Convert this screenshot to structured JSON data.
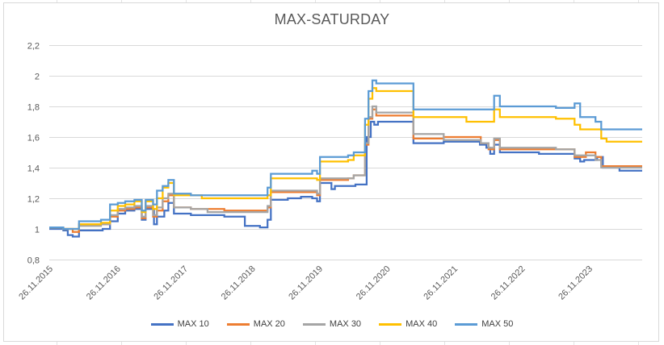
{
  "chart_data": {
    "type": "line",
    "title": "MAX-SATURDAY",
    "xlabel": "",
    "ylabel": "",
    "x_ticks": [
      "26.11.2015",
      "26.11.2016",
      "26.11.2017",
      "26.11.2018",
      "26.11.2019",
      "26.11.2020",
      "26.11.2021",
      "26.11.2022",
      "26.11.2023"
    ],
    "x_range": [
      "2015-11-26",
      "2024-09-10"
    ],
    "y_ticks": [
      "0,8",
      "1",
      "1,2",
      "1,4",
      "1,6",
      "1,8",
      "2",
      "2,2"
    ],
    "ylim": [
      0.8,
      2.2
    ],
    "grid": "horizontal",
    "legend_position": "bottom",
    "series": [
      {
        "name": "MAX 10",
        "color": "#4472c4",
        "points": [
          [
            "2015-11-26",
            1.0
          ],
          [
            "2016-02-10",
            0.99
          ],
          [
            "2016-03-05",
            0.96
          ],
          [
            "2016-04-01",
            0.95
          ],
          [
            "2016-05-05",
            0.99
          ],
          [
            "2016-07-01",
            0.99
          ],
          [
            "2016-09-10",
            1.0
          ],
          [
            "2016-10-20",
            1.05
          ],
          [
            "2016-12-01",
            1.1
          ],
          [
            "2017-01-10",
            1.12
          ],
          [
            "2017-03-01",
            1.13
          ],
          [
            "2017-04-10",
            1.06
          ],
          [
            "2017-05-01",
            1.13
          ],
          [
            "2017-06-15",
            1.03
          ],
          [
            "2017-07-01",
            1.08
          ],
          [
            "2017-08-10",
            1.12
          ],
          [
            "2017-09-01",
            1.17
          ],
          [
            "2017-10-01",
            1.1
          ],
          [
            "2018-01-01",
            1.09
          ],
          [
            "2018-07-01",
            1.08
          ],
          [
            "2018-10-20",
            1.02
          ],
          [
            "2019-01-10",
            1.01
          ],
          [
            "2019-02-20",
            1.06
          ],
          [
            "2019-03-10",
            1.19
          ],
          [
            "2019-06-10",
            1.2
          ],
          [
            "2019-08-20",
            1.21
          ],
          [
            "2019-10-20",
            1.2
          ],
          [
            "2019-11-15",
            1.18
          ],
          [
            "2019-12-01",
            1.3
          ],
          [
            "2020-02-01",
            1.26
          ],
          [
            "2020-02-20",
            1.28
          ],
          [
            "2020-04-01",
            1.28
          ],
          [
            "2020-06-10",
            1.29
          ],
          [
            "2020-08-10",
            1.6
          ],
          [
            "2020-09-01",
            1.7
          ],
          [
            "2020-09-20",
            1.68
          ],
          [
            "2020-10-10",
            1.7
          ],
          [
            "2020-12-01",
            1.7
          ],
          [
            "2021-03-01",
            1.7
          ],
          [
            "2021-04-20",
            1.56
          ],
          [
            "2021-08-01",
            1.56
          ],
          [
            "2021-10-01",
            1.57
          ],
          [
            "2022-02-01",
            1.57
          ],
          [
            "2022-04-15",
            1.55
          ],
          [
            "2022-05-20",
            1.53
          ],
          [
            "2022-06-10",
            1.49
          ],
          [
            "2022-07-01",
            1.55
          ],
          [
            "2022-08-01",
            1.5
          ],
          [
            "2022-12-01",
            1.5
          ],
          [
            "2023-03-01",
            1.49
          ],
          [
            "2023-06-01",
            1.49
          ],
          [
            "2023-09-10",
            1.46
          ],
          [
            "2023-10-10",
            1.44
          ],
          [
            "2023-11-01",
            1.45
          ],
          [
            "2024-01-10",
            1.47
          ],
          [
            "2024-02-10",
            1.4
          ],
          [
            "2024-05-10",
            1.38
          ],
          [
            "2024-09-10",
            1.38
          ]
        ]
      },
      {
        "name": "MAX 20",
        "color": "#ed7d31",
        "points": [
          [
            "2015-11-26",
            1.01
          ],
          [
            "2016-02-10",
            1.0
          ],
          [
            "2016-04-01",
            0.98
          ],
          [
            "2016-05-05",
            1.03
          ],
          [
            "2016-09-01",
            1.03
          ],
          [
            "2016-10-20",
            1.08
          ],
          [
            "2016-12-01",
            1.12
          ],
          [
            "2017-01-10",
            1.13
          ],
          [
            "2017-03-01",
            1.14
          ],
          [
            "2017-04-10",
            1.07
          ],
          [
            "2017-05-01",
            1.14
          ],
          [
            "2017-06-10",
            1.08
          ],
          [
            "2017-07-01",
            1.12
          ],
          [
            "2017-08-01",
            1.18
          ],
          [
            "2017-09-01",
            1.22
          ],
          [
            "2017-10-01",
            1.14
          ],
          [
            "2018-01-01",
            1.13
          ],
          [
            "2018-07-01",
            1.12
          ],
          [
            "2019-02-20",
            1.14
          ],
          [
            "2019-03-10",
            1.24
          ],
          [
            "2019-10-01",
            1.24
          ],
          [
            "2019-11-15",
            1.22
          ],
          [
            "2019-12-01",
            1.32
          ],
          [
            "2020-05-01",
            1.33
          ],
          [
            "2020-06-01",
            1.35
          ],
          [
            "2020-08-01",
            1.55
          ],
          [
            "2020-08-20",
            1.72
          ],
          [
            "2020-09-10",
            1.78
          ],
          [
            "2020-10-01",
            1.74
          ],
          [
            "2021-03-01",
            1.74
          ],
          [
            "2021-04-20",
            1.59
          ],
          [
            "2021-08-01",
            1.59
          ],
          [
            "2021-10-01",
            1.6
          ],
          [
            "2022-03-01",
            1.6
          ],
          [
            "2022-04-20",
            1.56
          ],
          [
            "2022-06-01",
            1.52
          ],
          [
            "2022-07-01",
            1.58
          ],
          [
            "2022-08-01",
            1.52
          ],
          [
            "2023-06-01",
            1.52
          ],
          [
            "2023-09-10",
            1.47
          ],
          [
            "2023-11-10",
            1.5
          ],
          [
            "2024-01-01",
            1.47
          ],
          [
            "2024-02-01",
            1.41
          ],
          [
            "2024-09-10",
            1.41
          ]
        ]
      },
      {
        "name": "MAX 30",
        "color": "#a5a5a5",
        "points": [
          [
            "2015-11-26",
            1.01
          ],
          [
            "2016-02-10",
            1.0
          ],
          [
            "2016-05-05",
            1.02
          ],
          [
            "2016-09-01",
            1.03
          ],
          [
            "2016-10-20",
            1.09
          ],
          [
            "2016-12-01",
            1.13
          ],
          [
            "2017-01-10",
            1.14
          ],
          [
            "2017-03-01",
            1.15
          ],
          [
            "2017-04-10",
            1.08
          ],
          [
            "2017-05-01",
            1.15
          ],
          [
            "2017-06-10",
            1.09
          ],
          [
            "2017-07-01",
            1.14
          ],
          [
            "2017-08-01",
            1.2
          ],
          [
            "2017-09-01",
            1.23
          ],
          [
            "2017-10-01",
            1.14
          ],
          [
            "2018-01-01",
            1.13
          ],
          [
            "2018-04-01",
            1.11
          ],
          [
            "2018-07-01",
            1.11
          ],
          [
            "2019-02-20",
            1.15
          ],
          [
            "2019-03-10",
            1.25
          ],
          [
            "2019-10-01",
            1.25
          ],
          [
            "2019-11-15",
            1.23
          ],
          [
            "2019-12-01",
            1.33
          ],
          [
            "2020-05-01",
            1.33
          ],
          [
            "2020-06-01",
            1.35
          ],
          [
            "2020-08-01",
            1.56
          ],
          [
            "2020-08-20",
            1.73
          ],
          [
            "2020-09-10",
            1.8
          ],
          [
            "2020-10-01",
            1.76
          ],
          [
            "2021-03-01",
            1.76
          ],
          [
            "2021-04-20",
            1.62
          ],
          [
            "2021-08-01",
            1.62
          ],
          [
            "2021-10-01",
            1.58
          ],
          [
            "2022-03-01",
            1.58
          ],
          [
            "2022-04-20",
            1.56
          ],
          [
            "2022-06-01",
            1.53
          ],
          [
            "2022-07-01",
            1.59
          ],
          [
            "2022-08-01",
            1.53
          ],
          [
            "2023-06-01",
            1.52
          ],
          [
            "2023-09-10",
            1.48
          ],
          [
            "2023-11-10",
            1.48
          ],
          [
            "2024-01-01",
            1.45
          ],
          [
            "2024-02-01",
            1.4
          ],
          [
            "2024-09-10",
            1.4
          ]
        ]
      },
      {
        "name": "MAX 40",
        "color": "#ffc000",
        "points": [
          [
            "2015-11-26",
            1.01
          ],
          [
            "2016-02-10",
            1.0
          ],
          [
            "2016-05-05",
            1.03
          ],
          [
            "2016-09-01",
            1.04
          ],
          [
            "2016-10-20",
            1.12
          ],
          [
            "2016-12-01",
            1.15
          ],
          [
            "2017-01-10",
            1.16
          ],
          [
            "2017-03-01",
            1.18
          ],
          [
            "2017-04-10",
            1.11
          ],
          [
            "2017-05-01",
            1.18
          ],
          [
            "2017-06-10",
            1.13
          ],
          [
            "2017-07-01",
            1.2
          ],
          [
            "2017-08-01",
            1.27
          ],
          [
            "2017-09-01",
            1.3
          ],
          [
            "2017-10-01",
            1.22
          ],
          [
            "2018-01-01",
            1.22
          ],
          [
            "2018-03-01",
            1.2
          ],
          [
            "2018-07-01",
            1.2
          ],
          [
            "2019-02-20",
            1.22
          ],
          [
            "2019-03-10",
            1.33
          ],
          [
            "2019-10-01",
            1.33
          ],
          [
            "2019-11-15",
            1.32
          ],
          [
            "2019-12-01",
            1.44
          ],
          [
            "2020-05-01",
            1.45
          ],
          [
            "2020-06-01",
            1.48
          ],
          [
            "2020-08-01",
            1.68
          ],
          [
            "2020-08-20",
            1.85
          ],
          [
            "2020-09-10",
            1.92
          ],
          [
            "2020-10-01",
            1.9
          ],
          [
            "2021-03-01",
            1.9
          ],
          [
            "2021-04-20",
            1.73
          ],
          [
            "2021-08-01",
            1.73
          ],
          [
            "2021-10-01",
            1.73
          ],
          [
            "2022-02-01",
            1.7
          ],
          [
            "2022-04-01",
            1.7
          ],
          [
            "2022-06-01",
            1.7
          ],
          [
            "2022-07-01",
            1.78
          ],
          [
            "2022-08-01",
            1.73
          ],
          [
            "2023-06-01",
            1.72
          ],
          [
            "2023-09-10",
            1.68
          ],
          [
            "2023-10-10",
            1.65
          ],
          [
            "2024-02-01",
            1.59
          ],
          [
            "2024-03-01",
            1.57
          ],
          [
            "2024-09-10",
            1.57
          ]
        ]
      },
      {
        "name": "MAX 50",
        "color": "#5b9bd5",
        "points": [
          [
            "2015-11-26",
            1.01
          ],
          [
            "2016-02-10",
            1.0
          ],
          [
            "2016-05-05",
            1.05
          ],
          [
            "2016-09-01",
            1.06
          ],
          [
            "2016-10-20",
            1.16
          ],
          [
            "2016-12-01",
            1.17
          ],
          [
            "2017-01-10",
            1.18
          ],
          [
            "2017-03-01",
            1.19
          ],
          [
            "2017-04-10",
            1.12
          ],
          [
            "2017-05-01",
            1.19
          ],
          [
            "2017-06-10",
            1.16
          ],
          [
            "2017-07-01",
            1.25
          ],
          [
            "2017-08-01",
            1.28
          ],
          [
            "2017-09-01",
            1.32
          ],
          [
            "2017-10-01",
            1.23
          ],
          [
            "2018-01-01",
            1.22
          ],
          [
            "2018-07-01",
            1.22
          ],
          [
            "2019-02-20",
            1.27
          ],
          [
            "2019-03-10",
            1.36
          ],
          [
            "2019-10-01",
            1.36
          ],
          [
            "2019-10-20",
            1.38
          ],
          [
            "2019-11-15",
            1.36
          ],
          [
            "2019-12-01",
            1.47
          ],
          [
            "2020-05-01",
            1.48
          ],
          [
            "2020-06-01",
            1.5
          ],
          [
            "2020-08-01",
            1.72
          ],
          [
            "2020-08-20",
            1.9
          ],
          [
            "2020-09-10",
            1.97
          ],
          [
            "2020-10-01",
            1.95
          ],
          [
            "2021-03-01",
            1.95
          ],
          [
            "2021-04-20",
            1.78
          ],
          [
            "2021-08-01",
            1.78
          ],
          [
            "2022-06-01",
            1.78
          ],
          [
            "2022-07-01",
            1.87
          ],
          [
            "2022-08-01",
            1.8
          ],
          [
            "2023-06-01",
            1.79
          ],
          [
            "2023-09-10",
            1.82
          ],
          [
            "2023-10-10",
            1.73
          ],
          [
            "2024-01-01",
            1.7
          ],
          [
            "2024-02-01",
            1.65
          ],
          [
            "2024-09-10",
            1.65
          ]
        ]
      }
    ]
  }
}
